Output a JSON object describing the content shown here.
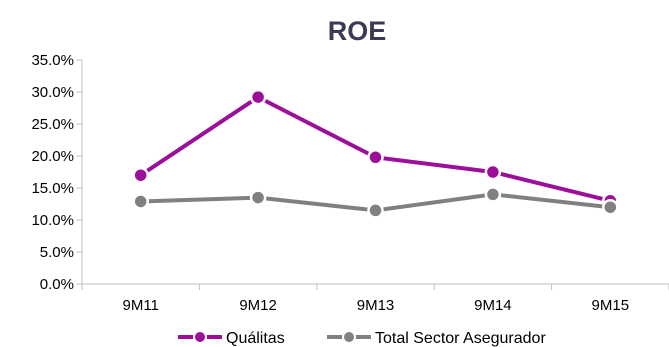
{
  "chart_data": {
    "type": "line",
    "title": "ROE",
    "categories": [
      "9M11",
      "9M12",
      "9M13",
      "9M14",
      "9M15"
    ],
    "ylim": [
      0,
      0.35
    ],
    "yticks": [
      0,
      0.05,
      0.1,
      0.15,
      0.2,
      0.25,
      0.3,
      0.35
    ],
    "ytick_labels": [
      "0.0%",
      "5.0%",
      "10.0%",
      "15.0%",
      "20.0%",
      "25.0%",
      "30.0%",
      "35.0%"
    ],
    "grid": false,
    "legend_position": "bottom",
    "series": [
      {
        "name": "Quálitas",
        "color": "#9b0f9b",
        "values": [
          0.17,
          0.292,
          0.198,
          0.175,
          0.13
        ]
      },
      {
        "name": "Total Sector Asegurador",
        "color": "#808080",
        "values": [
          0.129,
          0.135,
          0.115,
          0.14,
          0.12
        ]
      }
    ]
  }
}
